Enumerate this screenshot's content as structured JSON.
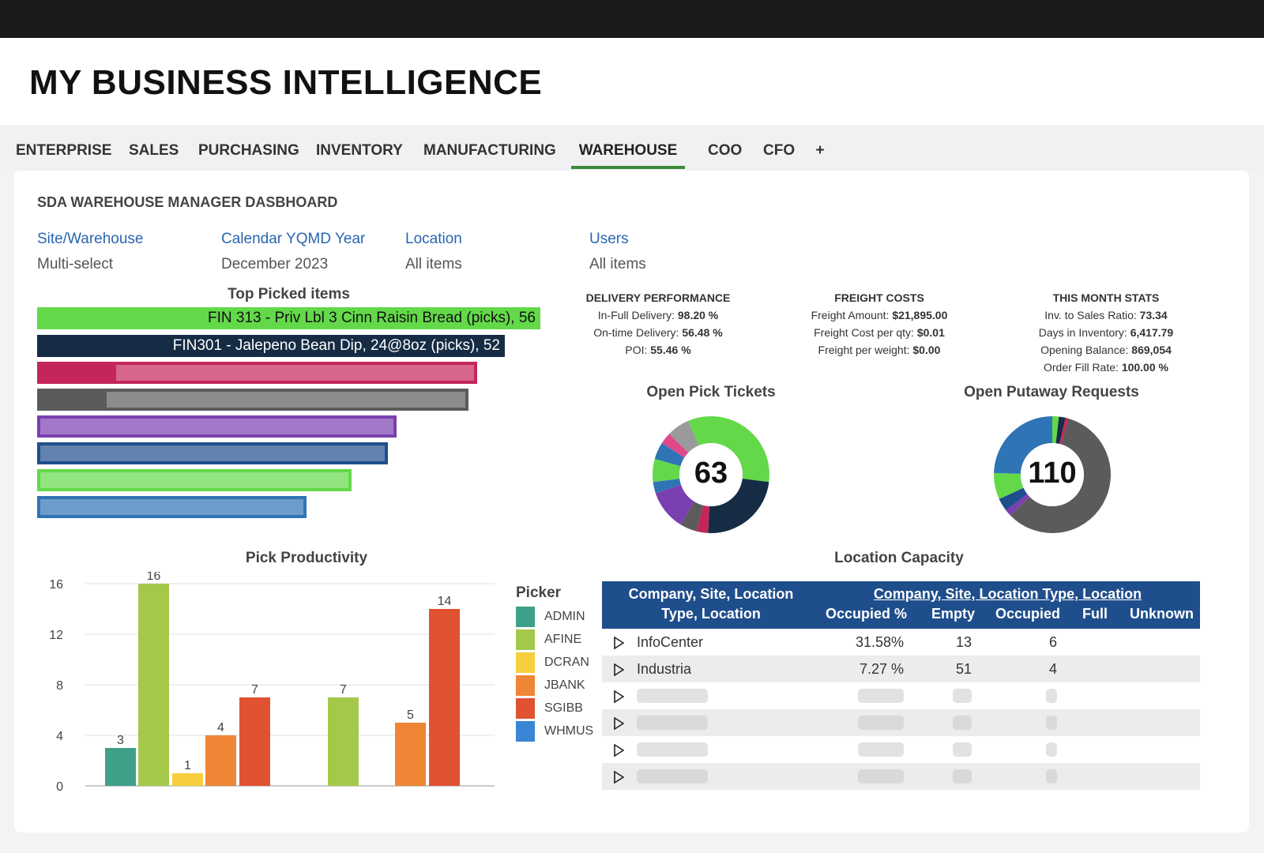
{
  "app": {
    "title": "MY BUSINESS INTELLIGENCE"
  },
  "tabs": [
    {
      "label": "ENTERPRISE"
    },
    {
      "label": "SALES"
    },
    {
      "label": "PURCHASING"
    },
    {
      "label": "INVENTORY"
    },
    {
      "label": "MANUFACTURING"
    },
    {
      "label": "WAREHOUSE",
      "active": true
    },
    {
      "label": "COO"
    },
    {
      "label": "CFO"
    },
    {
      "label": "+"
    }
  ],
  "dashboard": {
    "title": "SDA WAREHOUSE MANAGER DASBHOARD"
  },
  "filters": [
    {
      "label": "Site/Warehouse",
      "value": "Multi-select"
    },
    {
      "label": "Calendar YQMD Year",
      "value": "December 2023"
    },
    {
      "label": "Location",
      "value": "All items"
    },
    {
      "label": "Users",
      "value": "All items"
    }
  ],
  "top_picked": {
    "title": "Top Picked items",
    "items": [
      {
        "label": "FIN 313 - Priv Lbl 3 Cinn Raisin Bread (picks), 56",
        "value": 56,
        "color": "#63d94a"
      },
      {
        "label": "FIN301 - Jalepeno Bean Dip, 24@8oz (picks), 52",
        "value": 52,
        "color": "#152c44"
      },
      {
        "label": "",
        "value": 49,
        "color": "#c4265a"
      },
      {
        "label": "",
        "value": 48,
        "color": "#5b5b5b"
      },
      {
        "label": "",
        "value": 40,
        "color": "#7a3fb0"
      },
      {
        "label": "",
        "value": 39,
        "color": "#1f4e8c"
      },
      {
        "label": "",
        "value": 35,
        "color": "#63d94a"
      },
      {
        "label": "",
        "value": 30,
        "color": "#2f74b5"
      }
    ]
  },
  "stats": {
    "delivery": {
      "title": "DELIVERY PERFORMANCE",
      "lines": [
        {
          "k": "In-Full Delivery:",
          "v": "98.20 %"
        },
        {
          "k": "On-time Delivery:",
          "v": "56.48 %"
        },
        {
          "k": "POI:",
          "v": "55.46 %"
        }
      ]
    },
    "freight": {
      "title": "FREIGHT COSTS",
      "lines": [
        {
          "k": "Freight Amount:",
          "v": "$21,895.00"
        },
        {
          "k": "Freight Cost per qty:",
          "v": "$0.01"
        },
        {
          "k": "Freight per weight:",
          "v": "$0.00"
        }
      ]
    },
    "month": {
      "title": "THIS MONTH STATS",
      "lines": [
        {
          "k": "Inv. to Sales Ratio:",
          "v": "73.34"
        },
        {
          "k": "Days in Inventory:",
          "v": "6,417.79"
        },
        {
          "k": "Opening Balance:",
          "v": "869,054"
        },
        {
          "k": "Order Fill Rate:",
          "v": "100.00 %"
        }
      ]
    }
  },
  "donuts": {
    "pick": {
      "title": "Open Pick Tickets",
      "total": "63",
      "segments": [
        {
          "value": 17,
          "color": "#63d94a"
        },
        {
          "value": 15,
          "color": "#152c44"
        },
        {
          "value": 2,
          "color": "#c4265a"
        },
        {
          "value": 3,
          "color": "#5b5b5b"
        },
        {
          "value": 7,
          "color": "#7a3fb0"
        },
        {
          "value": 2,
          "color": "#2f74b5"
        },
        {
          "value": 4,
          "color": "#63d94a"
        },
        {
          "value": 3,
          "color": "#2f74b5"
        },
        {
          "value": 2,
          "color": "#e0488a"
        },
        {
          "value": 4,
          "color": "#9a9a9a"
        },
        {
          "value": 4,
          "color": "#63d94a"
        }
      ]
    },
    "putaway": {
      "title": "Open Putaway Requests",
      "total": "110",
      "segments": [
        {
          "value": 2,
          "color": "#63d94a"
        },
        {
          "value": 2,
          "color": "#152c44"
        },
        {
          "value": 1,
          "color": "#c4265a"
        },
        {
          "value": 64,
          "color": "#5b5b5b"
        },
        {
          "value": 2,
          "color": "#7a3fb0"
        },
        {
          "value": 4,
          "color": "#1f4e8c"
        },
        {
          "value": 8,
          "color": "#63d94a"
        },
        {
          "value": 27,
          "color": "#2f74b5"
        }
      ]
    }
  },
  "chart_data": {
    "type": "bar",
    "title": "Pick Productivity",
    "legend_title": "Picker",
    "legend_position": "right",
    "ylim": [
      0,
      16
    ],
    "yticks": [
      0,
      4,
      8,
      12,
      16
    ],
    "grid": true,
    "groups": [
      {
        "bars": [
          {
            "picker": "ADMIN",
            "value": 3
          },
          {
            "picker": "AFINE",
            "value": 16
          },
          {
            "picker": "DCRAN",
            "value": 1
          },
          {
            "picker": "JBANK",
            "value": 4
          },
          {
            "picker": "SGIBB",
            "value": 7
          }
        ]
      },
      {
        "bars": [
          {
            "picker": "AFINE",
            "value": 7
          }
        ]
      },
      {
        "bars": [
          {
            "picker": "JBANK",
            "value": 5
          },
          {
            "picker": "SGIBB",
            "value": 14
          }
        ]
      }
    ],
    "series": [
      {
        "name": "ADMIN",
        "color": "#3fa08a"
      },
      {
        "name": "AFINE",
        "color": "#a4c94a"
      },
      {
        "name": "DCRAN",
        "color": "#f7cf3e"
      },
      {
        "name": "JBANK",
        "color": "#ef8636"
      },
      {
        "name": "SGIBB",
        "color": "#e05231"
      },
      {
        "name": "WHMUS",
        "color": "#3a86d6"
      }
    ]
  },
  "location_capacity": {
    "title": "Location Capacity",
    "header_left": [
      "Company, Site, Location",
      "Type, Location"
    ],
    "header_group": "Company, Site, Location Type, Location",
    "columns": [
      "Occupied %",
      "Empty",
      "Occupied",
      "Full",
      "Unknown"
    ],
    "rows": [
      {
        "name": "InfoCenter",
        "occupied_pct": "31.58%",
        "empty": "13",
        "occupied": "6"
      },
      {
        "name": "Industria",
        "occupied_pct": "7.27 %",
        "empty": "51",
        "occupied": "4"
      },
      {
        "name": "",
        "occupied_pct": "",
        "empty": "",
        "occupied": ""
      },
      {
        "name": "",
        "occupied_pct": "",
        "empty": "",
        "occupied": ""
      },
      {
        "name": "",
        "occupied_pct": "",
        "empty": "",
        "occupied": ""
      },
      {
        "name": "",
        "occupied_pct": "",
        "empty": "",
        "occupied": ""
      }
    ]
  }
}
